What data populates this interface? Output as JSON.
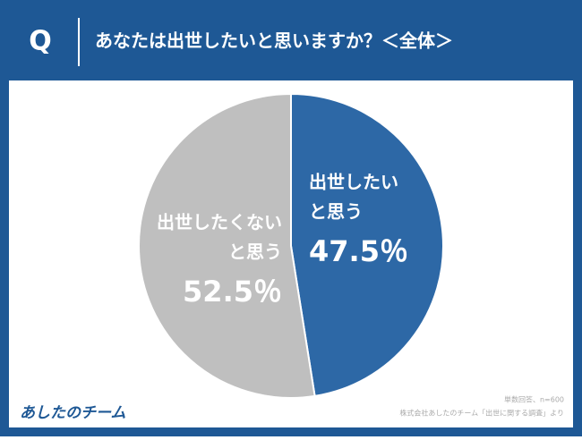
{
  "header": {
    "badge": "Q",
    "title": "あなたは出世したいと思いますか？＜全体＞"
  },
  "chart_data": {
    "type": "pie",
    "categories": [
      [
        "出世したい",
        "と思う"
      ],
      [
        "出世したくない",
        "と思う"
      ]
    ],
    "values": [
      47.5,
      52.5
    ],
    "value_labels": [
      "47.5％",
      "52.5％"
    ],
    "colors": [
      "#2d68a6",
      "#bfbfbf"
    ]
  },
  "footer": {
    "note": "単数回答、n=600",
    "source": "株式会社あしたのチーム「出世に関する調査」より",
    "logo": "あしたのチーム"
  }
}
